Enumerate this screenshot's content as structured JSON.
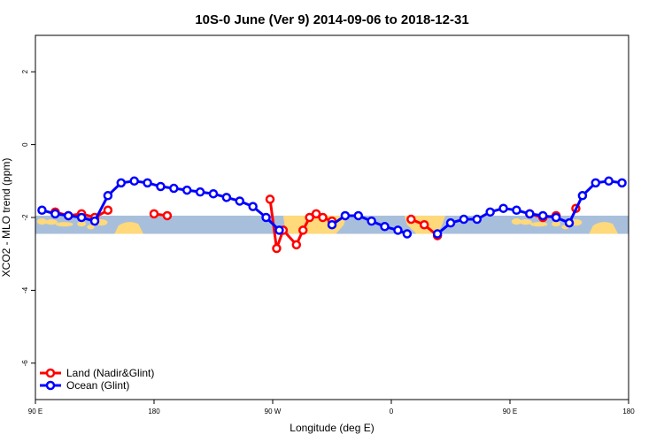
{
  "chart_data": {
    "type": "line",
    "title": "10S-0 June (Ver 9)   2014-09-06 to 2018-12-31",
    "xlabel": "Longitude (deg E)",
    "ylabel": "XCO2 - MLO trend (ppm)",
    "xlim": [
      90,
      540
    ],
    "ylim": [
      -7,
      3
    ],
    "x_ticks": [
      {
        "value": 90,
        "label": "90 E"
      },
      {
        "value": 180,
        "label": "180"
      },
      {
        "value": 270,
        "label": "90 W"
      },
      {
        "value": 360,
        "label": "0"
      },
      {
        "value": 450,
        "label": "90 E"
      },
      {
        "value": 540,
        "label": "180"
      }
    ],
    "y_ticks": [
      {
        "value": 2,
        "label": "2"
      },
      {
        "value": 0,
        "label": "0"
      },
      {
        "value": -2,
        "label": "-2"
      },
      {
        "value": -4,
        "label": "-4"
      },
      {
        "value": -6,
        "label": "-6"
      }
    ],
    "grid": false,
    "legend_position": "bottom-left",
    "band": {
      "y_min": -2.45,
      "y_max": -1.95,
      "color": "#a8bfdc"
    },
    "land_color": "#ffd97a",
    "series": [
      {
        "name": "Land (Nadir&Glint)",
        "color": "#ff0000",
        "segments": [
          {
            "x": [
              105,
              115,
              125,
              135,
              145
            ],
            "y": [
              -1.85,
              -1.95,
              -1.9,
              -2.0,
              -1.8
            ]
          },
          {
            "x": [
              180,
              190
            ],
            "y": [
              -1.9,
              -1.95
            ]
          },
          {
            "x": [
              268,
              273,
              278,
              288,
              293,
              298,
              303
            ],
            "y": [
              -1.5,
              -2.85,
              -2.35,
              -2.75,
              -2.35,
              -2.0,
              -1.9
            ]
          },
          {
            "x": [
              308,
              315
            ],
            "y": [
              -2.0,
              -2.1
            ]
          },
          {
            "x": [
              375,
              385,
              395
            ],
            "y": [
              -2.05,
              -2.2,
              -2.5
            ]
          },
          {
            "x": [
              465,
              475,
              485
            ],
            "y": [
              -1.9,
              -2.0,
              -1.95
            ]
          },
          {
            "x": [
              500
            ],
            "y": [
              -1.75
            ]
          }
        ]
      },
      {
        "name": "Ocean (Glint)",
        "color": "#0000ff",
        "segments": [
          {
            "x": [
              95,
              105,
              115,
              125,
              135,
              145,
              155,
              165,
              175,
              185,
              195,
              205,
              215,
              225,
              235,
              245,
              255,
              265,
              275
            ],
            "y": [
              -1.8,
              -1.9,
              -1.95,
              -2.0,
              -2.1,
              -1.4,
              -1.05,
              -1.0,
              -1.05,
              -1.15,
              -1.2,
              -1.25,
              -1.3,
              -1.35,
              -1.45,
              -1.55,
              -1.7,
              -2.0,
              -2.35
            ]
          },
          {
            "x": [
              315,
              325,
              335,
              345,
              355,
              365,
              372
            ],
            "y": [
              -2.2,
              -1.95,
              -1.95,
              -2.1,
              -2.25,
              -2.35,
              -2.45
            ]
          },
          {
            "x": [
              395,
              405,
              415,
              425,
              435,
              445,
              455,
              465,
              475,
              485,
              495,
              505,
              515,
              525,
              535
            ],
            "y": [
              -2.45,
              -2.15,
              -2.05,
              -2.05,
              -1.85,
              -1.75,
              -1.8,
              -1.9,
              -1.95,
              -2.0,
              -2.15,
              -1.4,
              -1.05,
              -1.0,
              -1.05
            ]
          }
        ]
      }
    ]
  }
}
